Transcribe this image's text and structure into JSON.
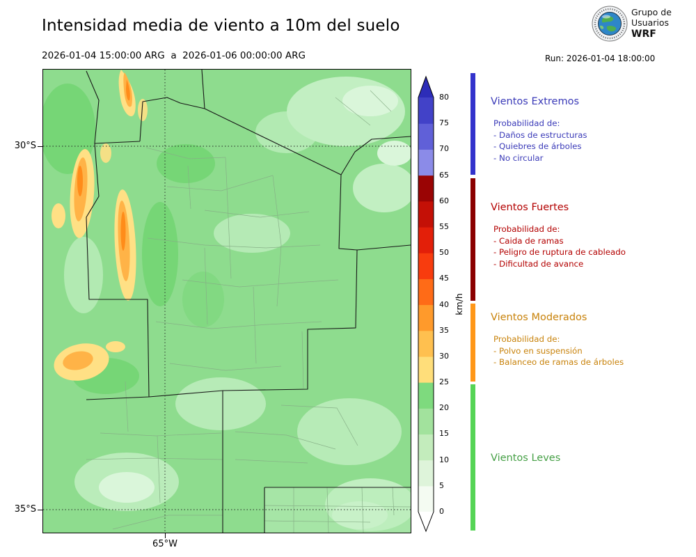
{
  "header": {
    "title": "Intensidad media de viento a 10m del suelo",
    "valid_period": "2026-01-04 15:00:00 ARG  a  2026-01-06 00:00:00 ARG",
    "run_label": "Run: 2026-01-04 18:00:00",
    "logo": {
      "line1": "Grupo de",
      "line2": "Usuarios",
      "line3": "WRF"
    }
  },
  "map": {
    "lat_ticks": [
      "30°S",
      "35°S"
    ],
    "lon_ticks": [
      "65°W"
    ]
  },
  "colorbar": {
    "unit": "km/h",
    "ticks": [
      "0",
      "5",
      "10",
      "15",
      "20",
      "25",
      "30",
      "35",
      "40",
      "45",
      "50",
      "55",
      "60",
      "65",
      "70",
      "75",
      "80"
    ],
    "above_color": "#2d2db8",
    "below_color": "#ffffff",
    "segments": [
      {
        "from": 0,
        "to": 5,
        "color": "#f4fbf2"
      },
      {
        "from": 5,
        "to": 10,
        "color": "#def4da"
      },
      {
        "from": 10,
        "to": 15,
        "color": "#c3ecbc"
      },
      {
        "from": 15,
        "to": 20,
        "color": "#a2e29d"
      },
      {
        "from": 20,
        "to": 25,
        "color": "#7eda7e"
      },
      {
        "from": 25,
        "to": 30,
        "color": "#ffde7a"
      },
      {
        "from": 30,
        "to": 35,
        "color": "#ffc04f"
      },
      {
        "from": 35,
        "to": 40,
        "color": "#ff9a2b"
      },
      {
        "from": 40,
        "to": 45,
        "color": "#ff6b17"
      },
      {
        "from": 45,
        "to": 50,
        "color": "#f83c0e"
      },
      {
        "from": 50,
        "to": 55,
        "color": "#e31f09"
      },
      {
        "from": 55,
        "to": 60,
        "color": "#c41006"
      },
      {
        "from": 60,
        "to": 65,
        "color": "#9a0404"
      },
      {
        "from": 65,
        "to": 70,
        "color": "#8b8be8"
      },
      {
        "from": 70,
        "to": 75,
        "color": "#6060d8"
      },
      {
        "from": 75,
        "to": 80,
        "color": "#4242c8"
      }
    ]
  },
  "legend": {
    "sections": [
      {
        "title": "Vientos Extremos",
        "text_color": "#3a3ab8",
        "bar_color": "#3333cc",
        "prob_label": "Probabilidad de:",
        "items": [
          "- Daños de estructuras",
          "- Quiebres de árboles",
          "- No circular"
        ]
      },
      {
        "title": "Vientos Fuertes",
        "text_color": "#b30000",
        "bar_color": "#8b0000",
        "prob_label": "Probabilidad de:",
        "items": [
          "- Caida de ramas",
          "- Peligro de ruptura de cableado",
          "- Dificultad de avance"
        ]
      },
      {
        "title": "Vientos Moderados",
        "text_color": "#c8820a",
        "bar_color": "#ff9718",
        "prob_label": "Probabilidad de:",
        "items": [
          "- Polvo en suspensión",
          "- Balanceo de ramas de árboles"
        ]
      },
      {
        "title": "Vientos Leves",
        "text_color": "#46a046",
        "bar_color": "#55d455",
        "items": []
      }
    ]
  }
}
